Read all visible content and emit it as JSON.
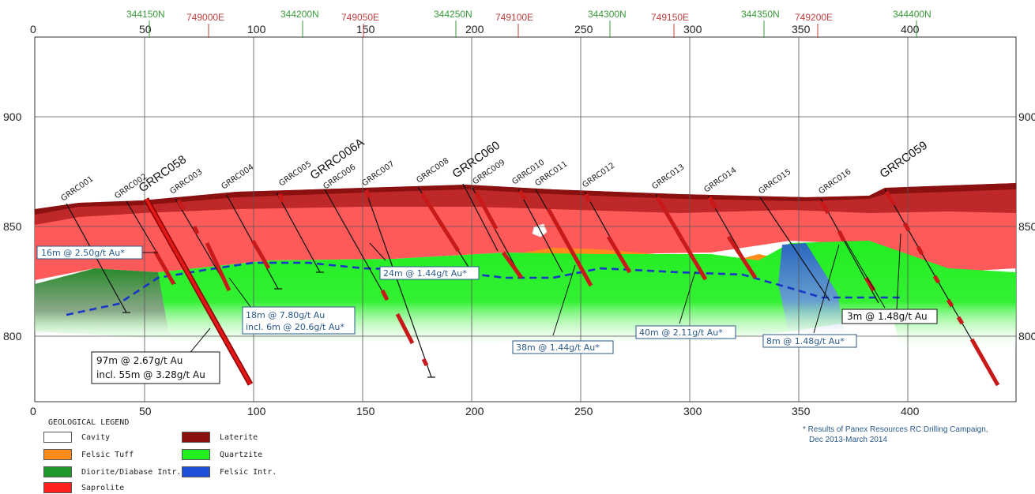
{
  "axis": {
    "x_ticks": [
      "0",
      "50",
      "100",
      "150",
      "200",
      "250",
      "300",
      "350",
      "400"
    ],
    "y_ticks": [
      "900",
      "850",
      "800"
    ],
    "northings": [
      "344150N",
      "344200N",
      "344250N",
      "344300N",
      "344350N",
      "344400N"
    ],
    "eastings": [
      "749000E",
      "749050E",
      "749100E",
      "749150E",
      "749200E"
    ]
  },
  "holes": {
    "GRRC001": "GRRC001",
    "GRRC002": "GRRC002",
    "GRRC058": "GRRC058",
    "GRRC003": "GRRC003",
    "GRRC004": "GRRC004",
    "GRRC005": "GRRC005",
    "GRRC006A": "GRRC006A",
    "GRRC006": "GRRC006",
    "GRRC007": "GRRC007",
    "GRRC008": "GRRC008",
    "GRRC060": "GRRC060",
    "GRRC009": "GRRC009",
    "GRRC010": "GRRC010",
    "GRRC011": "GRRC011",
    "GRRC012": "GRRC012",
    "GRRC013": "GRRC013",
    "GRRC014": "GRRC014",
    "GRRC015": "GRRC015",
    "GRRC016": "GRRC016",
    "GRRC059": "GRRC059"
  },
  "intercepts": {
    "a1": "16m @ 2.50g/t Au*",
    "a2_l1": "18m @ 7.80g/t Au",
    "a2_l2": "incl. 6m @ 20.6g/t Au*",
    "a3": "24m @ 1.44g/t Au*",
    "a4": "38m @ 1.44g/t Au*",
    "a5": "40m @ 2.11g/t Au*",
    "a6": "8m @ 1.48g/t Au*",
    "a7": "3m @ 1.48g/t Au",
    "a8_l1": "97m @ 2.67g/t Au",
    "a8_l2": "incl. 55m @ 3.28g/t Au"
  },
  "legend": {
    "title": "GEOLOGICAL LEGEND",
    "items": [
      {
        "label": "Cavity",
        "color": "#ffffff"
      },
      {
        "label": "Felsic Tuff",
        "color": "#ff8c1a"
      },
      {
        "label": "Diorite/Diabase Intr.",
        "color": "#1f9a2a"
      },
      {
        "label": "Saprolite",
        "color": "#ff2020"
      },
      {
        "label": "Laterite",
        "color": "#8b1010"
      },
      {
        "label": "Quartzite",
        "color": "#22ee22"
      },
      {
        "label": "Felsic Intr.",
        "color": "#1d4fd8"
      }
    ]
  },
  "footnote": {
    "line1": "* Results of Panex Resources RC Drilling Campaign,",
    "line2": "Dec 2013-March 2014"
  }
}
